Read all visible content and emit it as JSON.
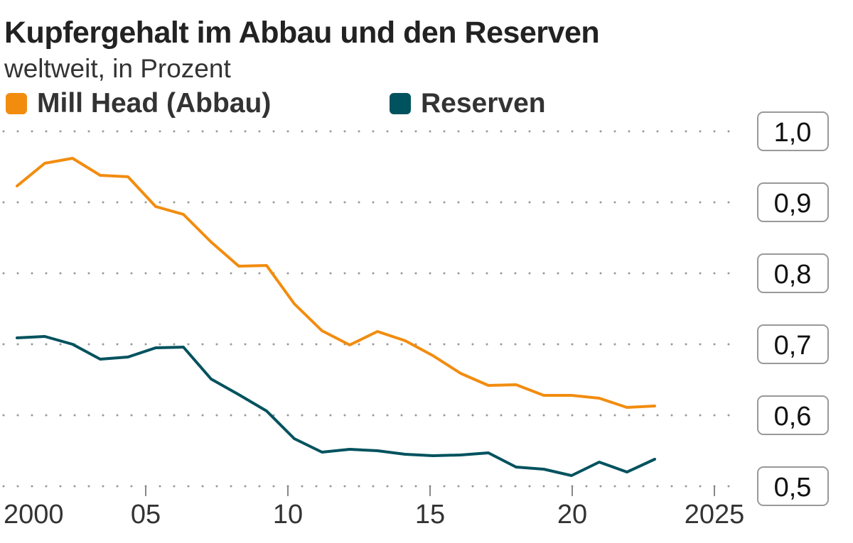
{
  "chart_data": {
    "type": "line",
    "title": "Kupfergehalt im Abbau und den Reserven",
    "subtitle": "weltweit, in Prozent",
    "x": [
      2000,
      2001,
      2002,
      2003,
      2004,
      2005,
      2006,
      2007,
      2008,
      2009,
      2010,
      2011,
      2012,
      2013,
      2014,
      2015,
      2016,
      2017,
      2018,
      2019,
      2020,
      2021,
      2022,
      2023
    ],
    "series": [
      {
        "name": "Mill Head (Abbau)",
        "color": "#f28c0f",
        "values": [
          0.923,
          0.955,
          0.962,
          0.938,
          0.936,
          0.894,
          0.883,
          0.844,
          0.81,
          0.811,
          0.757,
          0.719,
          0.699,
          0.718,
          0.705,
          0.684,
          0.659,
          0.642,
          0.643,
          0.628,
          0.628,
          0.624,
          0.611,
          0.613
        ]
      },
      {
        "name": "Reserven",
        "color": "#00525e",
        "values": [
          0.709,
          0.711,
          0.7,
          0.679,
          0.682,
          0.695,
          0.696,
          0.651,
          0.629,
          0.606,
          0.567,
          0.548,
          0.552,
          0.55,
          0.545,
          0.543,
          0.544,
          0.547,
          0.527,
          0.524,
          0.515,
          0.534,
          0.52,
          0.538
        ]
      }
    ],
    "xticks": [
      {
        "v": 2000,
        "label": "2000"
      },
      {
        "v": 2005,
        "label": "05"
      },
      {
        "v": 2010,
        "label": "10"
      },
      {
        "v": 2015,
        "label": "15"
      },
      {
        "v": 2020,
        "label": "20"
      },
      {
        "v": 2025,
        "label": "2025"
      }
    ],
    "yticks": [
      {
        "v": 1.0,
        "label": "1,0"
      },
      {
        "v": 0.9,
        "label": "0,9"
      },
      {
        "v": 0.8,
        "label": "0,8"
      },
      {
        "v": 0.7,
        "label": "0,7"
      },
      {
        "v": 0.6,
        "label": "0,6"
      },
      {
        "v": 0.5,
        "label": "0,5"
      }
    ],
    "ylim": [
      0.5,
      1.0
    ],
    "xlim": [
      2000,
      2025
    ],
    "grid": "horizontal dotted",
    "legend": "top-left"
  }
}
